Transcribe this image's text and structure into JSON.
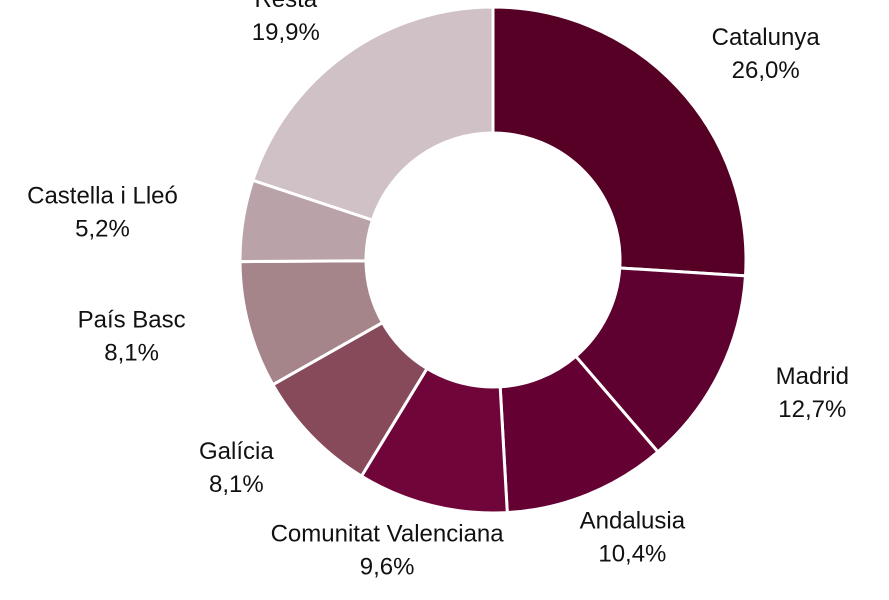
{
  "chart_data": {
    "type": "donut",
    "categories": [
      "Catalunya",
      "Madrid",
      "Andalusia",
      "Comunitat Valenciana",
      "Galícia",
      "País Basc",
      "Castella i Lleó",
      "Resta"
    ],
    "values": [
      26.0,
      12.7,
      10.4,
      9.6,
      8.1,
      8.1,
      5.2,
      19.9
    ],
    "value_labels": [
      "26,0%",
      "12,7%",
      "10,4%",
      "9,6%",
      "8,1%",
      "8,1%",
      "5,2%",
      "19,9%"
    ],
    "colors": [
      "#560026",
      "#5e0030",
      "#650032",
      "#6f0538",
      "#874a5b",
      "#a5848a",
      "#baa3a8",
      "#cfc1c5"
    ]
  }
}
